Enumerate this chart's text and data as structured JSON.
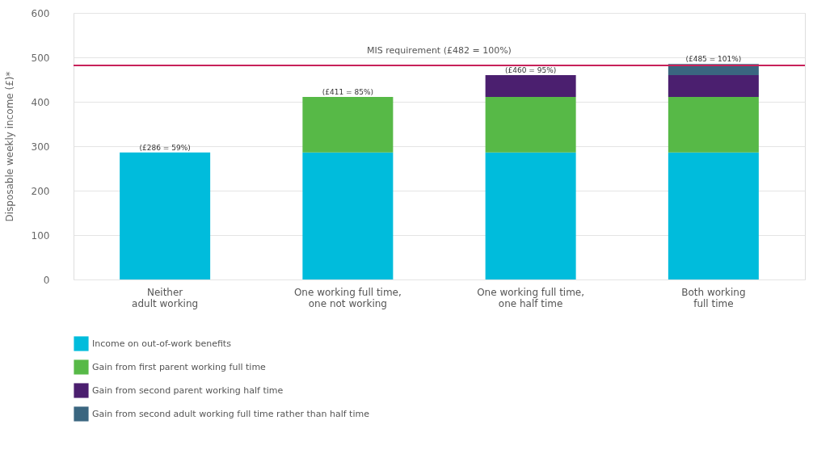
{
  "chart_data": {
    "type": "bar",
    "stacked": true,
    "ylabel": "Disposable weekly income (£)*",
    "categories": [
      "Neither\nadult working",
      "One working full time,\none not working",
      "One working full time,\none half time",
      "Both working\nfull time"
    ],
    "series": [
      {
        "name": "Income on out-of-work benefits",
        "color": "#00bcdc",
        "values": [
          286,
          286,
          286,
          286
        ]
      },
      {
        "name": "Gain from first parent working full time",
        "color": "#57b947",
        "values": [
          null,
          125,
          125,
          125
        ]
      },
      {
        "name": "Gain from second parent working half time",
        "color": "#4b1f6f",
        "values": [
          null,
          null,
          49,
          49
        ]
      },
      {
        "name": "Gain from second adult working full time rather than half time",
        "color": "#3a6680",
        "values": [
          null,
          null,
          null,
          25
        ]
      }
    ],
    "totals": [
      "(£286 = 59%)",
      "(£411 = 85%)",
      "(£460 = 95%)",
      "(£485 = 101%)"
    ],
    "ref_lines": [
      {
        "axis": "y",
        "value": 482,
        "label": "MIS requirement (£482 = 100%)",
        "color": "#c8215a"
      }
    ],
    "ylim": [
      0,
      600
    ],
    "yticks": [
      0,
      100,
      200,
      300,
      400,
      500,
      600
    ],
    "grid": "y",
    "legend": "bottom left"
  }
}
